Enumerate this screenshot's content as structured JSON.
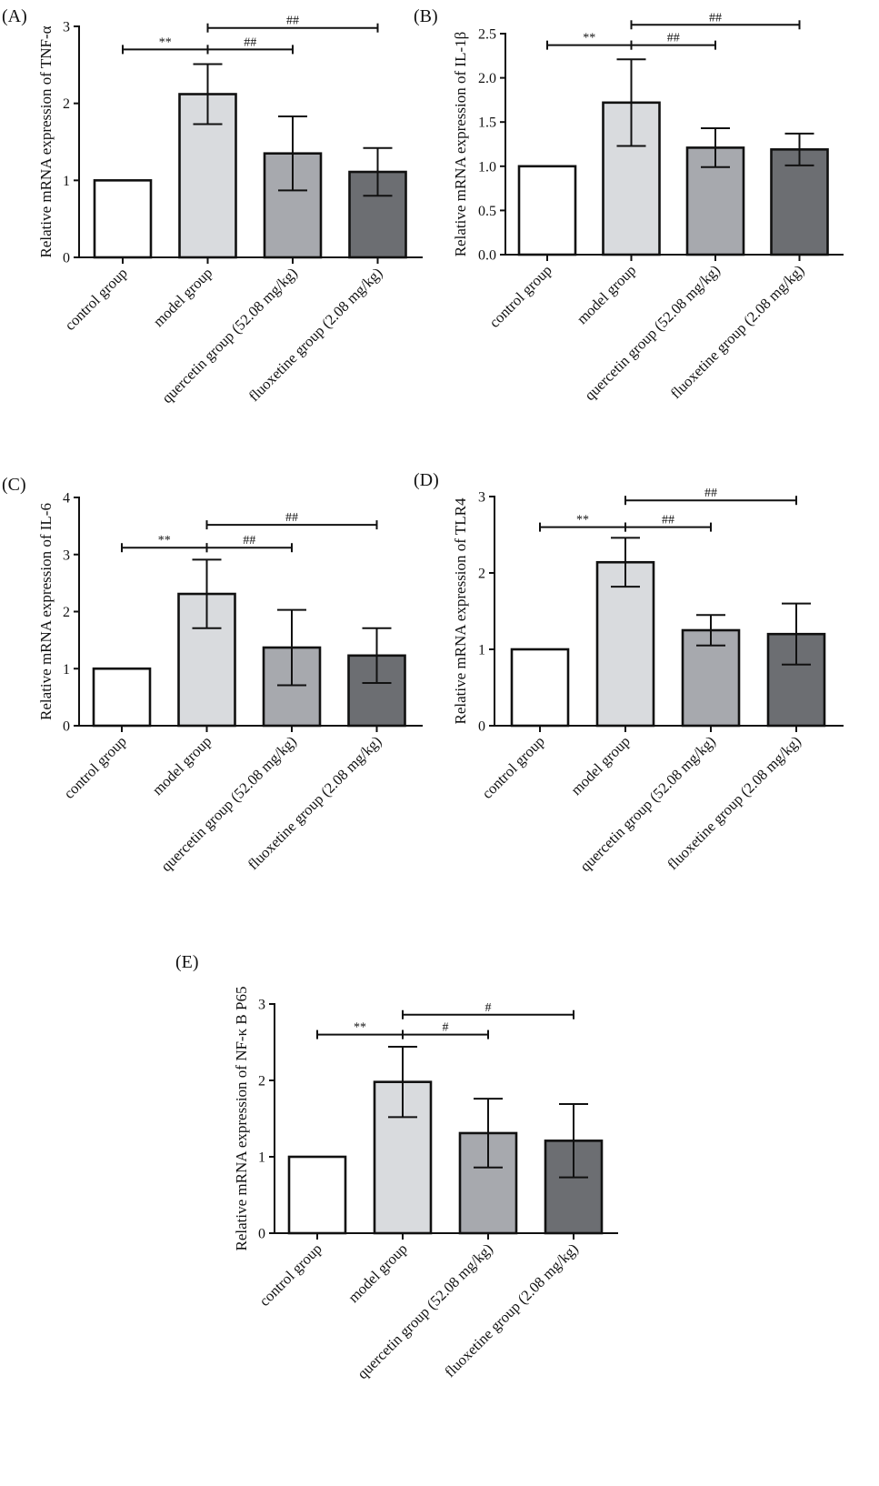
{
  "figure": {
    "colors": {
      "axis": "#111111",
      "bar_fills": [
        "#ffffff",
        "#d9dbde",
        "#a7a9ae",
        "#6c6e72"
      ],
      "bar_stroke": "#111111",
      "background": "#ffffff"
    }
  },
  "chart_data": [
    {
      "id": "A",
      "panel_label": "(A)",
      "type": "bar",
      "title": "",
      "ylabel": "Relative mRNA expression of TNF-α",
      "xlabel": "",
      "categories": [
        "control group",
        "model group",
        "quercetin group (52.08 mg/kg)",
        "fluoxetine group (2.08 mg/kg)"
      ],
      "values": [
        1.0,
        2.12,
        1.35,
        1.11
      ],
      "errors": [
        0,
        0.39,
        0.48,
        0.31
      ],
      "ylim": [
        0,
        3
      ],
      "yticks": [
        0,
        1,
        2,
        3
      ],
      "ytick_labels": [
        "0",
        "1",
        "2",
        "3"
      ],
      "grid": false,
      "significance": [
        {
          "from": 0,
          "to": 1,
          "label": "**",
          "y": 2.7
        },
        {
          "from": 1,
          "to": 2,
          "label": "##",
          "y": 2.7
        },
        {
          "from": 1,
          "to": 3,
          "label": "##",
          "y": 2.98
        }
      ]
    },
    {
      "id": "B",
      "panel_label": "(B)",
      "type": "bar",
      "title": "",
      "ylabel": "Relative mRNA expression of IL-1β",
      "xlabel": "",
      "categories": [
        "control group",
        "model group",
        "quercetin group (52.08 mg/kg)",
        "fluoxetine group (2.08 mg/kg)"
      ],
      "values": [
        1.0,
        1.72,
        1.21,
        1.19
      ],
      "errors": [
        0,
        0.49,
        0.22,
        0.18
      ],
      "ylim": [
        0,
        2.5
      ],
      "yticks": [
        0,
        0.5,
        1.0,
        1.5,
        2.0,
        2.5
      ],
      "ytick_labels": [
        "0.0",
        "0.5",
        "1.0",
        "1.5",
        "2.0",
        "2.5"
      ],
      "grid": false,
      "significance": [
        {
          "from": 0,
          "to": 1,
          "label": "**",
          "y": 2.37
        },
        {
          "from": 1,
          "to": 2,
          "label": "##",
          "y": 2.37
        },
        {
          "from": 1,
          "to": 3,
          "label": "##",
          "y": 2.6
        }
      ]
    },
    {
      "id": "C",
      "panel_label": "(C)",
      "type": "bar",
      "title": "",
      "ylabel": "Relative mRNA  expression of IL-6",
      "xlabel": "",
      "categories": [
        "control group",
        "model group",
        "quercetin group (52.08 mg/kg)",
        "fluoxetine group (2.08 mg/kg)"
      ],
      "values": [
        1.0,
        2.31,
        1.37,
        1.23
      ],
      "errors": [
        0,
        0.6,
        0.66,
        0.48
      ],
      "ylim": [
        0,
        4
      ],
      "yticks": [
        0,
        1,
        2,
        3,
        4
      ],
      "ytick_labels": [
        "0",
        "1",
        "2",
        "3",
        "4"
      ],
      "grid": false,
      "significance": [
        {
          "from": 0,
          "to": 1,
          "label": "**",
          "y": 3.12
        },
        {
          "from": 1,
          "to": 2,
          "label": "##",
          "y": 3.12
        },
        {
          "from": 1,
          "to": 3,
          "label": "##",
          "y": 3.52
        }
      ]
    },
    {
      "id": "D",
      "panel_label": "(D)",
      "type": "bar",
      "title": "",
      "ylabel": "Relative mRNA expression of TLR4",
      "xlabel": "",
      "categories": [
        "control group",
        "model group",
        "quercetin group (52.08 mg/kg)",
        "fluoxetine group (2.08 mg/kg)"
      ],
      "values": [
        1.0,
        2.14,
        1.25,
        1.2
      ],
      "errors": [
        0,
        0.32,
        0.2,
        0.4
      ],
      "ylim": [
        0,
        3
      ],
      "yticks": [
        0,
        1,
        2,
        3
      ],
      "ytick_labels": [
        "0",
        "1",
        "2",
        "3"
      ],
      "grid": false,
      "significance": [
        {
          "from": 0,
          "to": 1,
          "label": "**",
          "y": 2.6
        },
        {
          "from": 1,
          "to": 2,
          "label": "##",
          "y": 2.6
        },
        {
          "from": 1,
          "to": 3,
          "label": "##",
          "y": 2.95
        }
      ]
    },
    {
      "id": "E",
      "panel_label": "(E)",
      "type": "bar",
      "title": "",
      "ylabel": "Relative mRNA expression of  NF-κ B P65",
      "xlabel": "",
      "categories": [
        "control group",
        "model group",
        "quercetin group (52.08 mg/kg)",
        "fluoxetine group (2.08 mg/kg)"
      ],
      "values": [
        1.0,
        1.98,
        1.31,
        1.21
      ],
      "errors": [
        0,
        0.46,
        0.45,
        0.48
      ],
      "ylim": [
        0,
        3
      ],
      "yticks": [
        0,
        1,
        2,
        3
      ],
      "ytick_labels": [
        "0",
        "1",
        "2",
        "3"
      ],
      "grid": false,
      "significance": [
        {
          "from": 0,
          "to": 1,
          "label": "**",
          "y": 2.6
        },
        {
          "from": 1,
          "to": 2,
          "label": "#",
          "y": 2.6
        },
        {
          "from": 1,
          "to": 3,
          "label": "#",
          "y": 2.86
        }
      ]
    }
  ]
}
